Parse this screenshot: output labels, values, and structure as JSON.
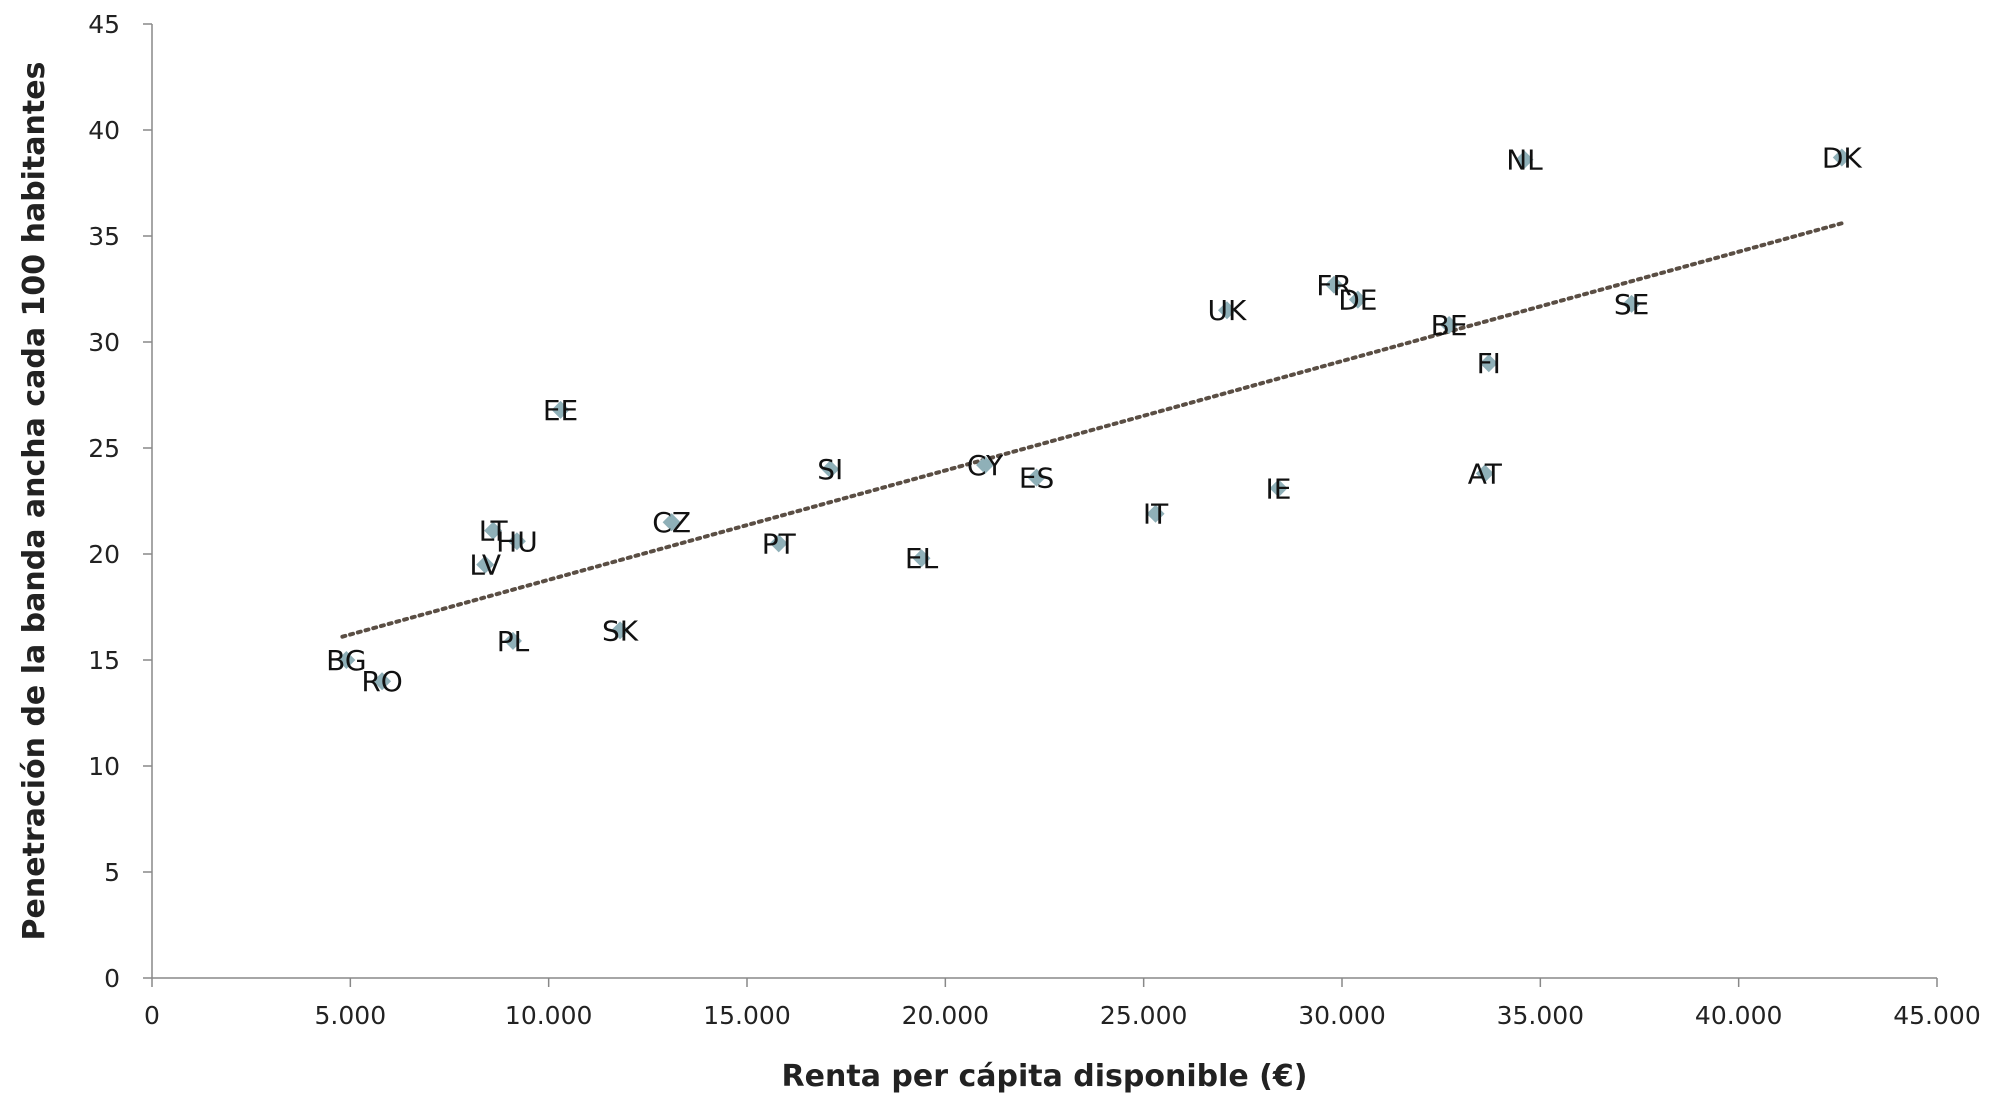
{
  "chart_data": {
    "type": "scatter",
    "title": "",
    "xlabel": "Renta per cápita disponible (€)",
    "ylabel": "Penetración de la banda ancha cada 100 habitantes",
    "xlim": [
      0,
      45000
    ],
    "ylim": [
      0,
      45
    ],
    "xticks": [
      0,
      5000,
      10000,
      15000,
      20000,
      25000,
      30000,
      35000,
      40000,
      45000
    ],
    "xtick_labels": [
      "0",
      "5.000",
      "10.000",
      "15.000",
      "20.000",
      "25.000",
      "30.000",
      "35.000",
      "40.000",
      "45.000"
    ],
    "yticks": [
      0,
      5,
      10,
      15,
      20,
      25,
      30,
      35,
      40,
      45
    ],
    "ytick_labels": [
      "0",
      "5",
      "10",
      "15",
      "20",
      "25",
      "30",
      "35",
      "40",
      "45"
    ],
    "grid": false,
    "marker": "diamond",
    "marker_color": "#8fb0b8",
    "trendline": {
      "style": "dotted",
      "color": "#5a4e44",
      "x": [
        4800,
        42600
      ],
      "y": [
        16.1,
        35.6
      ]
    },
    "points": [
      {
        "label": "BG",
        "x": 4900,
        "y": 15.0
      },
      {
        "label": "RO",
        "x": 5800,
        "y": 14.0
      },
      {
        "label": "LV",
        "x": 8400,
        "y": 19.5
      },
      {
        "label": "LT",
        "x": 8600,
        "y": 21.1
      },
      {
        "label": "HU",
        "x": 9200,
        "y": 20.6
      },
      {
        "label": "PL",
        "x": 9100,
        "y": 15.9
      },
      {
        "label": "EE",
        "x": 10300,
        "y": 26.8
      },
      {
        "label": "SK",
        "x": 11800,
        "y": 16.4
      },
      {
        "label": "CZ",
        "x": 13100,
        "y": 21.5
      },
      {
        "label": "PT",
        "x": 15800,
        "y": 20.5
      },
      {
        "label": "SI",
        "x": 17100,
        "y": 24.0
      },
      {
        "label": "EL",
        "x": 19400,
        "y": 19.8
      },
      {
        "label": "CY",
        "x": 21000,
        "y": 24.2
      },
      {
        "label": "ES",
        "x": 22300,
        "y": 23.6
      },
      {
        "label": "IT",
        "x": 25300,
        "y": 21.9
      },
      {
        "label": "UK",
        "x": 27100,
        "y": 31.5
      },
      {
        "label": "IE",
        "x": 28400,
        "y": 23.1
      },
      {
        "label": "FR",
        "x": 29800,
        "y": 32.7
      },
      {
        "label": "DE",
        "x": 30400,
        "y": 32.0
      },
      {
        "label": "BE",
        "x": 32700,
        "y": 30.8
      },
      {
        "label": "FI",
        "x": 33700,
        "y": 29.0
      },
      {
        "label": "AT",
        "x": 33600,
        "y": 23.8
      },
      {
        "label": "NL",
        "x": 34600,
        "y": 38.6
      },
      {
        "label": "SE",
        "x": 37300,
        "y": 31.8
      },
      {
        "label": "DK",
        "x": 42600,
        "y": 38.7
      }
    ]
  }
}
